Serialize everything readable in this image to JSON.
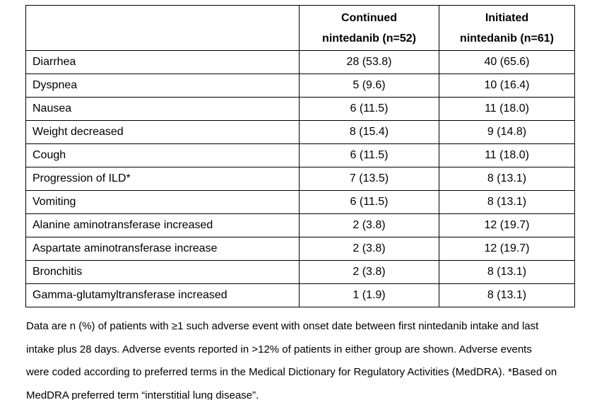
{
  "colors": {
    "background": "#ffffff",
    "text": "#000000",
    "border": "#000000"
  },
  "table": {
    "header": {
      "empty": "",
      "continued": {
        "line1": "Continued",
        "line2": "nintedanib (n=52)"
      },
      "initiated": {
        "line1": "Initiated",
        "line2": "nintedanib (n=61)"
      }
    },
    "rows": [
      {
        "event": "Diarrhea",
        "continued": "28 (53.8)",
        "initiated": "40 (65.6)"
      },
      {
        "event": "Dyspnea",
        "continued": "5 (9.6)",
        "initiated": "10 (16.4)"
      },
      {
        "event": "Nausea",
        "continued": "6 (11.5)",
        "initiated": "11 (18.0)"
      },
      {
        "event": "Weight decreased",
        "continued": "8 (15.4)",
        "initiated": "9 (14.8)"
      },
      {
        "event": "Cough",
        "continued": "6 (11.5)",
        "initiated": "11 (18.0)"
      },
      {
        "event": "Progression of ILD*",
        "continued": "7 (13.5)",
        "initiated": "8 (13.1)"
      },
      {
        "event": "Vomiting",
        "continued": "6 (11.5)",
        "initiated": "8 (13.1)"
      },
      {
        "event": "Alanine aminotransferase increased",
        "continued": "2 (3.8)",
        "initiated": "12 (19.7)"
      },
      {
        "event": "Aspartate aminotransferase increase",
        "continued": "2 (3.8)",
        "initiated": "12 (19.7)"
      },
      {
        "event": "Bronchitis",
        "continued": "2 (3.8)",
        "initiated": "8 (13.1)"
      },
      {
        "event": "Gamma-glutamyltransferase increased",
        "continued": "1 (1.9)",
        "initiated": "8 (13.1)"
      }
    ]
  },
  "footnote": {
    "lines": [
      "Data are n (%) of patients with ≥1 such adverse event with onset date between first nintedanib intake and last",
      "intake plus 28 days. Adverse events reported in >12% of patients in either group are shown. Adverse events",
      "were coded according to preferred terms in the Medical Dictionary for Regulatory Activities (MedDRA). *Based on",
      "MedDRA preferred term “interstitial lung disease”."
    ]
  }
}
